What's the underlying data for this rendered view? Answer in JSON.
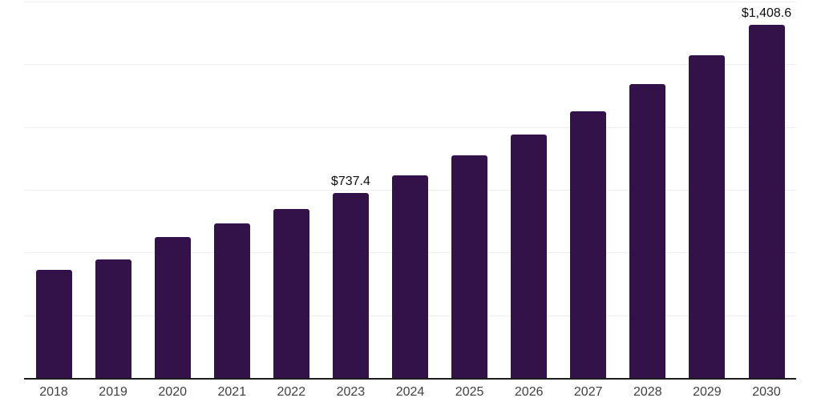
{
  "chart_data": {
    "type": "bar",
    "title": "",
    "xlabel": "",
    "ylabel": "",
    "categories": [
      "2018",
      "2019",
      "2020",
      "2021",
      "2022",
      "2023",
      "2024",
      "2025",
      "2026",
      "2027",
      "2028",
      "2029",
      "2030"
    ],
    "values": [
      430,
      474,
      563,
      616,
      674,
      737.4,
      809,
      886,
      970,
      1064,
      1172,
      1285,
      1408.6
    ],
    "value_labels": [
      "",
      "",
      "",
      "",
      "",
      "$737.4",
      "",
      "",
      "",
      "",
      "",
      "",
      "$1,408.6"
    ],
    "ylim": [
      0,
      1500
    ],
    "gridline_step": 250,
    "grid": "horizontal-light",
    "y_tick_labels_visible": false,
    "legend_position": "none",
    "colors": {
      "bar": "#33124A",
      "gridline": "#ededed",
      "axis_line": "#1c1c1c",
      "tick_label": "#3f3f3f",
      "value_label": "#0d0d0d",
      "background": "#ffffff"
    }
  }
}
